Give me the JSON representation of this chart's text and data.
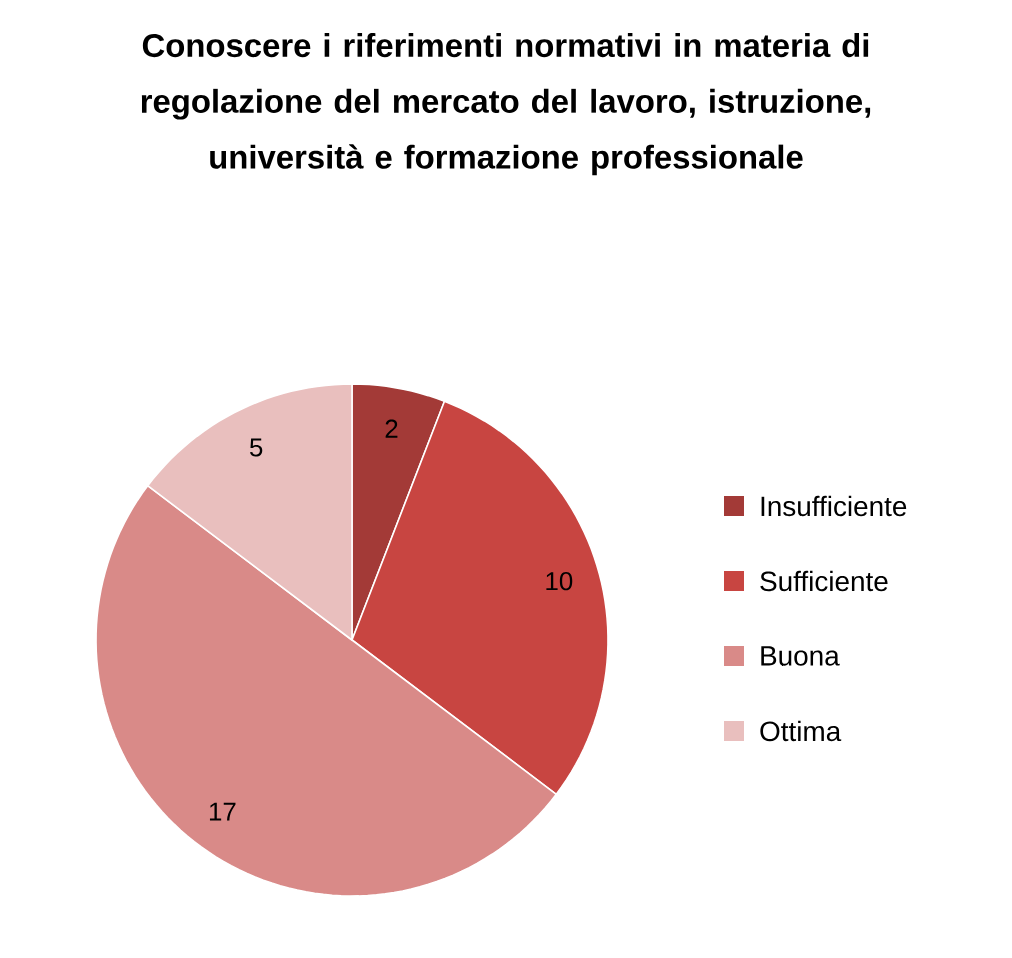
{
  "chart_data": {
    "type": "pie",
    "title": "Conoscere i riferimenti normativi in materia di regolazione del mercato del lavoro, istruzione, università e formazione professionale",
    "categories": [
      "Insufficiente",
      "Sufficiente",
      "Buona",
      "Ottima"
    ],
    "values": [
      2,
      10,
      17,
      5
    ],
    "colors": [
      "#a33a37",
      "#c84541",
      "#d98a88",
      "#e9bfbe"
    ],
    "data_labels": true,
    "legend": "right"
  }
}
